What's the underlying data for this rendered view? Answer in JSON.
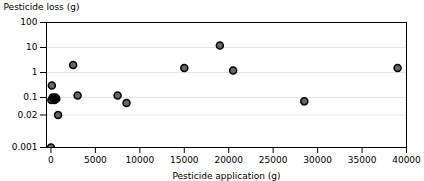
{
  "chart_data": {
    "type": "scatter",
    "x": [
      0,
      50,
      100,
      200,
      300,
      400,
      500,
      600,
      800,
      2500,
      3000,
      7500,
      8500,
      15000,
      19000,
      20500,
      28500,
      39000
    ],
    "values": [
      0.001,
      0.08,
      0.3,
      0.1,
      0.09,
      0.08,
      0.1,
      0.09,
      0.02,
      2.0,
      0.12,
      0.12,
      0.06,
      1.5,
      12.0,
      1.2,
      0.07,
      1.5
    ],
    "xlabel": "Pesticide application (g)",
    "ylabel": "Pesticide loss (g)",
    "xlim": [
      -500,
      40000
    ],
    "ylim": [
      0.001,
      100
    ],
    "xticks": [
      0,
      5000,
      10000,
      15000,
      20000,
      25000,
      30000,
      35000,
      40000
    ],
    "yticks": [
      0.001,
      0.02,
      0.1,
      1,
      10,
      100
    ],
    "log": "y",
    "grid": true
  }
}
